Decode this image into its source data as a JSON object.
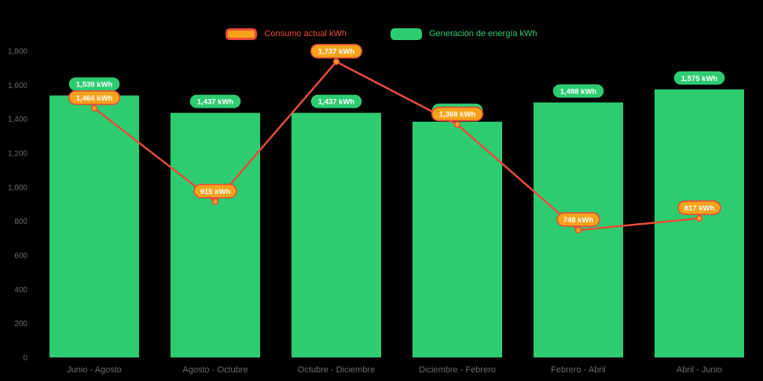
{
  "app": {
    "background": "#000000"
  },
  "legend": {
    "items": [
      {
        "id": "consumo",
        "label": "Consumo actual kWh",
        "text_color": "#e74c3c",
        "swatch_fill": "#f7a21b",
        "swatch_border": "#e74c3c"
      },
      {
        "id": "generacion",
        "label": "Generación de energía kWh",
        "text_color": "#2ecc71",
        "swatch_fill": "#2ecc71",
        "swatch_border": "#2ecc71"
      }
    ]
  },
  "chart_data": {
    "type": "bar+line",
    "title": "",
    "categories": [
      "Junio - Agosto",
      "Agosto - Octubre",
      "Octubre - Diciembre",
      "Diciembre - Febrero",
      "Febrero - Abril",
      "Abril - Junio"
    ],
    "series": [
      {
        "name": "Generación de energía kWh",
        "type": "bar",
        "color": "#2ecc71",
        "values": [
          1539,
          1437,
          1437,
          1385,
          1498,
          1575
        ],
        "labels": [
          "1,539 kWh",
          "1,437 kWh",
          "1,437 kWh",
          "1,385 kWh",
          "1,498 kWh",
          "1,575 kWh"
        ],
        "label_badge": {
          "fill": "#2ecc71",
          "text_color": "#ffffff"
        }
      },
      {
        "name": "Consumo actual kWh",
        "type": "line",
        "color": "#e74c3c",
        "point_fill": "#f7a21b",
        "values": [
          1464,
          915,
          1737,
          1368,
          748,
          817
        ],
        "labels": [
          "1,464 kWh",
          "915 kWh",
          "1,737 kWh",
          "1,368 kWh",
          "748 kWh",
          "817 kWh"
        ],
        "label_badge": {
          "fill": "#f7a21b",
          "border": "#e74c3c",
          "text_color": "#ffffff"
        }
      }
    ],
    "ylim": [
      0,
      1800
    ],
    "ytick_step": 200,
    "ytick_labels": [
      "0",
      "200",
      "400",
      "600",
      "800",
      "1,000",
      "1,200",
      "1,400",
      "1,600",
      "1,800"
    ],
    "grid": false,
    "legend_position": "top-center",
    "axis_text_color": "#6b6b6b"
  }
}
